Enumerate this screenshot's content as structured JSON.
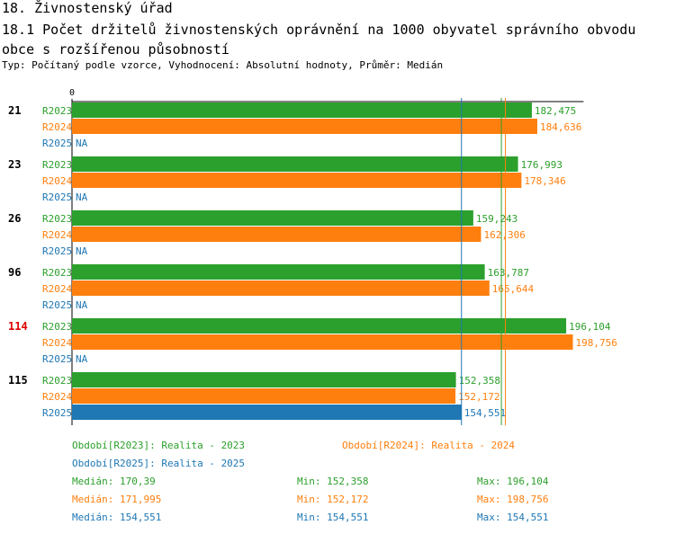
{
  "header": {
    "title": "18. Živnostenský úřad",
    "subtitle": "18.1 Počet držitelů živnostenských oprávnění na 1000 obyvatel správního obvodu obce s rozšířenou působností",
    "type_line": "Typ: Počítaný podle vzorce, Vyhodnocení: Absolutní hodnoty, Průměr: Medián"
  },
  "colors": {
    "R2023": "#2ca02c",
    "R2024": "#ff7f0e",
    "R2025": "#1f77b4",
    "highlight_group": "#dd0000"
  },
  "chart_data": {
    "type": "bar",
    "orientation": "horizontal",
    "axis_zero_label": "0",
    "xlim": [
      0,
      203
    ],
    "series_names": [
      "R2023",
      "R2024",
      "R2025"
    ],
    "groups": [
      {
        "label": "21",
        "highlight": false,
        "values": [
          "182,475",
          "184,636",
          "NA"
        ]
      },
      {
        "label": "23",
        "highlight": false,
        "values": [
          "176,993",
          "178,346",
          "NA"
        ]
      },
      {
        "label": "26",
        "highlight": false,
        "values": [
          "159,243",
          "162,306",
          "NA"
        ]
      },
      {
        "label": "96",
        "highlight": false,
        "values": [
          "163,787",
          "165,644",
          "NA"
        ]
      },
      {
        "label": "114",
        "highlight": true,
        "values": [
          "196,104",
          "198,756",
          "NA"
        ]
      },
      {
        "label": "115",
        "highlight": false,
        "values": [
          "152,358",
          "152,172",
          "154,551"
        ]
      }
    ],
    "reference_lines": [
      {
        "series": "R2023",
        "value": 170.39
      },
      {
        "series": "R2024",
        "value": 171.995
      },
      {
        "series": "R2025",
        "value": 154.551
      }
    ]
  },
  "legend": {
    "periods": [
      {
        "series": "R2023",
        "text": "Období[R2023]: Realita - 2023"
      },
      {
        "series": "R2024",
        "text": "Období[R2024]: Realita - 2024"
      },
      {
        "series": "R2025",
        "text": "Období[R2025]: Realita - 2025"
      }
    ],
    "stats": [
      {
        "series": "R2023",
        "median": "Medián: 170,39",
        "min": "Min: 152,358",
        "max": "Max: 196,104"
      },
      {
        "series": "R2024",
        "median": "Medián: 171,995",
        "min": "Min: 152,172",
        "max": "Max: 198,756"
      },
      {
        "series": "R2025",
        "median": "Medián: 154,551",
        "min": "Min: 154,551",
        "max": "Max: 154,551"
      }
    ]
  }
}
